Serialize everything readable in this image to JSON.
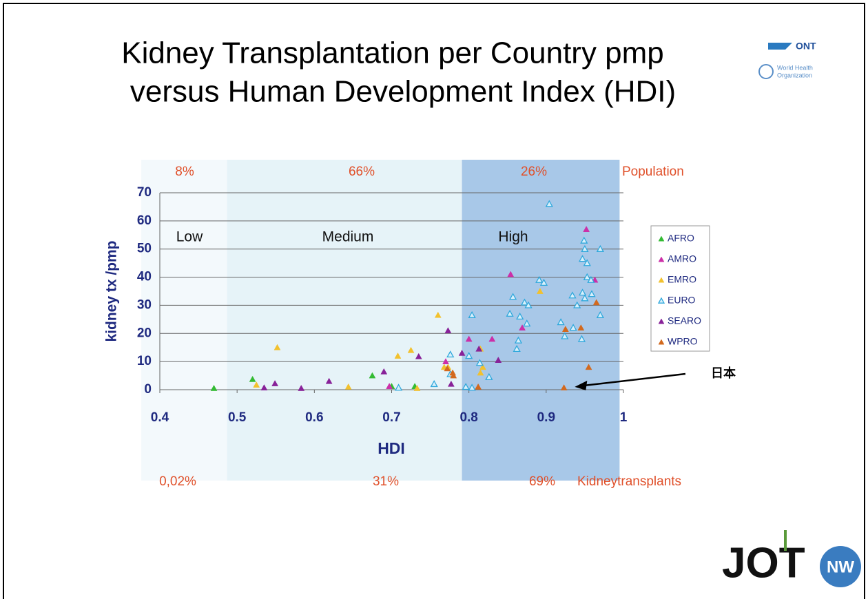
{
  "chart_data": {
    "type": "scatter",
    "title": [
      "Kidney Transplantation per Country pmp",
      "versus Human Development Index (HDI)"
    ],
    "x_label": "HDI",
    "y_label": "kidney tx /pmp",
    "xlim": [
      0.4,
      1
    ],
    "xticks": [
      0.4,
      0.5,
      0.6,
      0.7,
      0.8,
      0.9,
      1
    ],
    "ylim": [
      0,
      70
    ],
    "yticks": [
      0,
      10,
      20,
      30,
      40,
      50,
      60,
      70
    ],
    "grid": true,
    "legend": "right",
    "band_row_labels": {
      "top": "Population",
      "bottom": "Kidneytransplants"
    },
    "bands": [
      {
        "name": "Low",
        "from": 0.376,
        "to": 0.487,
        "color": "#f3f9fc",
        "population": {
          "value": 8,
          "label": "8%"
        },
        "transplants": {
          "value": 0.02,
          "label": "0,02%"
        }
      },
      {
        "name": "Medium",
        "from": 0.487,
        "to": 0.791,
        "color": "#e6f3f8",
        "population": {
          "value": 66,
          "label": "66%"
        },
        "transplants": {
          "value": 31,
          "label": "31%"
        }
      },
      {
        "name": "High",
        "from": 0.791,
        "to": 0.995,
        "color": "#a8c8e8",
        "population": {
          "value": 26,
          "label": "26%"
        },
        "transplants": {
          "value": 69,
          "label": "69%"
        }
      }
    ],
    "annotation": {
      "text": "日本",
      "x": 0.937,
      "y": 1
    },
    "series": [
      {
        "name": "AFRO",
        "color": "#33bb33",
        "x": [
          0.47,
          0.52,
          0.675,
          0.7,
          0.73
        ],
        "values": [
          0.5,
          3.7,
          5,
          1.2,
          1.2
        ]
      },
      {
        "name": "AMRO",
        "color": "#cc2fa8",
        "x": [
          0.854,
          0.952,
          0.963,
          0.869,
          0.8,
          0.83,
          0.77,
          0.697
        ],
        "values": [
          41,
          57,
          39,
          22,
          18,
          18,
          10,
          1.2
        ]
      },
      {
        "name": "EMRO",
        "color": "#f2c12e",
        "x": [
          0.552,
          0.525,
          0.644,
          0.708,
          0.725,
          0.76,
          0.768,
          0.773,
          0.815,
          0.815,
          0.818,
          0.892,
          0.733
        ],
        "values": [
          15,
          1.7,
          1,
          12,
          14,
          26.5,
          8,
          8,
          14.5,
          6,
          8,
          35,
          0.5
        ]
      },
      {
        "name": "EURO",
        "color": "#2fa8dc",
        "open": true,
        "x": [
          0.904,
          0.949,
          0.95,
          0.947,
          0.953,
          0.97,
          0.953,
          0.958,
          0.891,
          0.897,
          0.857,
          0.872,
          0.877,
          0.934,
          0.947,
          0.95,
          0.959,
          0.94,
          0.853,
          0.866,
          0.875,
          0.919,
          0.935,
          0.924,
          0.946,
          0.97,
          0.864,
          0.862,
          0.804,
          0.8,
          0.776,
          0.814,
          0.826,
          0.776,
          0.755,
          0.796,
          0.709,
          0.804
        ],
        "values": [
          66,
          53,
          50,
          46.5,
          45,
          50,
          40,
          39,
          39,
          38,
          33,
          31,
          30,
          33.5,
          34.5,
          32.5,
          34,
          30,
          27,
          26,
          23.5,
          24,
          22,
          19,
          18,
          26.5,
          17.5,
          14.5,
          26.5,
          12,
          12.5,
          9.5,
          4.5,
          5.5,
          2,
          1,
          0.7,
          0.7
        ]
      },
      {
        "name": "SEARO",
        "color": "#882299",
        "x": [
          0.549,
          0.535,
          0.583,
          0.619,
          0.69,
          0.735,
          0.773,
          0.791,
          0.838,
          0.777,
          0.813
        ],
        "values": [
          2.2,
          0.7,
          0.5,
          3,
          6.4,
          11.8,
          21,
          13,
          10.5,
          2,
          14.5
        ]
      },
      {
        "name": "WPRO",
        "color": "#d2691e",
        "x": [
          0.772,
          0.779,
          0.812,
          0.925,
          0.945,
          0.965,
          0.955,
          0.923,
          0.78
        ],
        "values": [
          7.5,
          6,
          1,
          21.5,
          22,
          31,
          8,
          0.7,
          5
        ]
      }
    ]
  },
  "logos": {
    "ont": "ONT",
    "who": [
      "World Health",
      "Organization"
    ],
    "jot": "JOT",
    "nw": "NW"
  }
}
